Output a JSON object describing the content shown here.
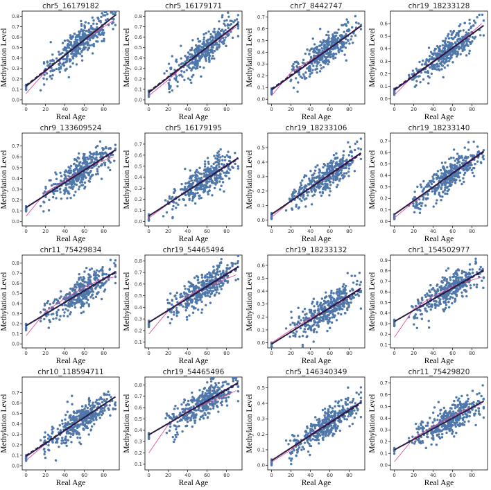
{
  "chart_data": [
    {
      "type": "scatter",
      "title": "chr5_16179182",
      "xlabel": "Real Age",
      "ylabel": "Methylation Level",
      "xlim": [
        -4,
        96
      ],
      "ylim": [
        -0.04,
        0.85
      ],
      "xticks": [
        0,
        20,
        40,
        60,
        80
      ],
      "yticks": [
        0.0,
        0.1,
        0.2,
        0.3,
        0.4,
        0.5,
        0.6,
        0.7,
        0.8
      ],
      "fit": [
        0.13,
        0.0074
      ],
      "trend": [
        0.14,
        0.0073
      ],
      "lowess": [
        [
          0,
          0.06
        ],
        [
          20,
          0.27
        ],
        [
          40,
          0.43
        ],
        [
          60,
          0.57
        ],
        [
          75,
          0.67
        ],
        [
          90,
          0.76
        ]
      ],
      "n": 380
    },
    {
      "type": "scatter",
      "title": "chr5_16179171",
      "xlabel": "Real Age",
      "ylabel": "Methylation Level",
      "xlim": [
        -4,
        96
      ],
      "ylim": [
        -0.04,
        0.85
      ],
      "xticks": [
        0,
        20,
        40,
        60,
        80
      ],
      "yticks": [
        0.0,
        0.1,
        0.2,
        0.3,
        0.4,
        0.5,
        0.6,
        0.7,
        0.8
      ],
      "fit": [
        0.07,
        0.0072
      ],
      "trend": [
        0.08,
        0.0071
      ],
      "lowess": [
        [
          0,
          0.04
        ],
        [
          20,
          0.19
        ],
        [
          40,
          0.36
        ],
        [
          60,
          0.5
        ],
        [
          75,
          0.6
        ],
        [
          90,
          0.7
        ]
      ],
      "n": 380
    },
    {
      "type": "scatter",
      "title": "chr7_8442747",
      "xlabel": "Real Age",
      "ylabel": "Methylation Level",
      "xlim": [
        -4,
        96
      ],
      "ylim": [
        -0.04,
        0.75
      ],
      "xticks": [
        0,
        20,
        40,
        60,
        80
      ],
      "yticks": [
        0.0,
        0.1,
        0.2,
        0.3,
        0.4,
        0.5,
        0.6,
        0.7
      ],
      "fit": [
        0.08,
        0.0059
      ],
      "trend": [
        0.09,
        0.0058
      ],
      "lowess": [
        [
          0,
          0.03
        ],
        [
          20,
          0.23
        ],
        [
          40,
          0.33
        ],
        [
          60,
          0.44
        ],
        [
          75,
          0.52
        ],
        [
          90,
          0.62
        ]
      ],
      "n": 380
    },
    {
      "type": "scatter",
      "title": "chr19_18233128",
      "xlabel": "Real Age",
      "ylabel": "Methylation Level",
      "xlim": [
        -4,
        96
      ],
      "ylim": [
        -0.04,
        0.7
      ],
      "xticks": [
        0,
        20,
        40,
        60,
        80
      ],
      "yticks": [
        0.0,
        0.1,
        0.2,
        0.3,
        0.4,
        0.5,
        0.6
      ],
      "fit": [
        0.07,
        0.0056
      ],
      "trend": [
        0.08,
        0.0055
      ],
      "lowess": [
        [
          0,
          0.03
        ],
        [
          20,
          0.19
        ],
        [
          40,
          0.3
        ],
        [
          60,
          0.41
        ],
        [
          75,
          0.5
        ],
        [
          90,
          0.6
        ]
      ],
      "n": 380
    },
    {
      "type": "scatter",
      "title": "chr9_133609524",
      "xlabel": "Real Age",
      "ylabel": "Methylation Level",
      "xlim": [
        -4,
        96
      ],
      "ylim": [
        -0.04,
        0.82
      ],
      "xticks": [
        0,
        20,
        40,
        60,
        80
      ],
      "yticks": [
        0.0,
        0.1,
        0.2,
        0.3,
        0.4,
        0.5,
        0.6,
        0.7
      ],
      "fit": [
        0.13,
        0.0058
      ],
      "trend": [
        0.13,
        0.0057
      ],
      "lowess": [
        [
          0,
          0.05
        ],
        [
          20,
          0.27
        ],
        [
          40,
          0.38
        ],
        [
          60,
          0.48
        ],
        [
          75,
          0.55
        ],
        [
          90,
          0.6
        ]
      ],
      "n": 380
    },
    {
      "type": "scatter",
      "title": "chr5_16179195",
      "xlabel": "Real Age",
      "ylabel": "Methylation Level",
      "xlim": [
        -4,
        96
      ],
      "ylim": [
        -0.04,
        0.8
      ],
      "xticks": [
        0,
        20,
        40,
        60,
        80
      ],
      "yticks": [
        0.0,
        0.1,
        0.2,
        0.3,
        0.4,
        0.5,
        0.6,
        0.7
      ],
      "fit": [
        0.05,
        0.0057
      ],
      "trend": [
        0.05,
        0.0056
      ],
      "lowess": [
        [
          0,
          0.03
        ],
        [
          20,
          0.16
        ],
        [
          40,
          0.28
        ],
        [
          60,
          0.39
        ],
        [
          75,
          0.47
        ],
        [
          90,
          0.56
        ]
      ],
      "n": 380
    },
    {
      "type": "scatter",
      "title": "chr19_18233106",
      "xlabel": "Real Age",
      "ylabel": "Methylation Level",
      "xlim": [
        -4,
        96
      ],
      "ylim": [
        -0.04,
        0.6
      ],
      "xticks": [
        0,
        20,
        40,
        60,
        80
      ],
      "yticks": [
        0.0,
        0.1,
        0.2,
        0.3,
        0.4,
        0.5
      ],
      "fit": [
        0.04,
        0.0046
      ],
      "trend": [
        0.04,
        0.0045
      ],
      "lowess": [
        [
          0,
          0.02
        ],
        [
          20,
          0.13
        ],
        [
          40,
          0.22
        ],
        [
          60,
          0.31
        ],
        [
          75,
          0.38
        ],
        [
          90,
          0.45
        ]
      ],
      "n": 380
    },
    {
      "type": "scatter",
      "title": "chr19_18233140",
      "xlabel": "Real Age",
      "ylabel": "Methylation Level",
      "xlim": [
        -4,
        96
      ],
      "ylim": [
        -0.04,
        0.77
      ],
      "xticks": [
        0,
        20,
        40,
        60,
        80
      ],
      "yticks": [
        0.0,
        0.1,
        0.2,
        0.3,
        0.4,
        0.5,
        0.6,
        0.7
      ],
      "fit": [
        0.06,
        0.006
      ],
      "trend": [
        0.06,
        0.0059
      ],
      "lowess": [
        [
          0,
          0.03
        ],
        [
          20,
          0.17
        ],
        [
          40,
          0.3
        ],
        [
          60,
          0.42
        ],
        [
          75,
          0.5
        ],
        [
          90,
          0.59
        ]
      ],
      "n": 380
    },
    {
      "type": "scatter",
      "title": "chr11_75429834",
      "xlabel": "Real Age",
      "ylabel": "Methylation Level",
      "xlim": [
        -4,
        96
      ],
      "ylim": [
        -0.04,
        0.88
      ],
      "xticks": [
        0,
        20,
        40,
        60,
        80
      ],
      "yticks": [
        0.0,
        0.1,
        0.2,
        0.3,
        0.4,
        0.5,
        0.6,
        0.7,
        0.8
      ],
      "fit": [
        0.18,
        0.0058
      ],
      "trend": [
        0.18,
        0.0057
      ],
      "lowess": [
        [
          0,
          0.08
        ],
        [
          20,
          0.32
        ],
        [
          40,
          0.45
        ],
        [
          60,
          0.56
        ],
        [
          75,
          0.63
        ],
        [
          90,
          0.66
        ]
      ],
      "n": 380
    },
    {
      "type": "scatter",
      "title": "chr19_54465494",
      "xlabel": "Real Age",
      "ylabel": "Methylation Level",
      "xlim": [
        -4,
        96
      ],
      "ylim": [
        0.05,
        0.85
      ],
      "xticks": [
        0,
        20,
        40,
        60,
        80
      ],
      "yticks": [
        0.1,
        0.2,
        0.3,
        0.4,
        0.5,
        0.6,
        0.7,
        0.8
      ],
      "fit": [
        0.27,
        0.0052
      ],
      "trend": [
        0.27,
        0.0051
      ],
      "lowess": [
        [
          0,
          0.17
        ],
        [
          20,
          0.37
        ],
        [
          40,
          0.5
        ],
        [
          60,
          0.58
        ],
        [
          75,
          0.63
        ],
        [
          90,
          0.68
        ]
      ],
      "n": 380
    },
    {
      "type": "scatter",
      "title": "chr19_18233132",
      "xlabel": "Real Age",
      "ylabel": "Methylation Level",
      "xlim": [
        -4,
        96
      ],
      "ylim": [
        -0.04,
        0.68
      ],
      "xticks": [
        0,
        20,
        40,
        60,
        80
      ],
      "yticks": [
        0.0,
        0.1,
        0.2,
        0.3,
        0.4,
        0.5,
        0.6
      ],
      "fit": [
        -0.01,
        0.0047
      ],
      "trend": [
        -0.01,
        0.0046
      ],
      "lowess": [
        [
          0,
          0.0
        ],
        [
          20,
          0.1
        ],
        [
          40,
          0.19
        ],
        [
          60,
          0.27
        ],
        [
          75,
          0.33
        ],
        [
          90,
          0.42
        ]
      ],
      "n": 380
    },
    {
      "type": "scatter",
      "title": "chr1_154502977",
      "xlabel": "Real Age",
      "ylabel": "Methylation Level",
      "xlim": [
        -4,
        96
      ],
      "ylim": [
        0.07,
        0.95
      ],
      "xticks": [
        0,
        20,
        40,
        60,
        80
      ],
      "yticks": [
        0.1,
        0.2,
        0.3,
        0.4,
        0.5,
        0.6,
        0.7,
        0.8,
        0.9
      ],
      "fit": [
        0.32,
        0.0053
      ],
      "trend": [
        0.32,
        0.0052
      ],
      "lowess": [
        [
          0,
          0.17
        ],
        [
          20,
          0.44
        ],
        [
          40,
          0.56
        ],
        [
          60,
          0.65
        ],
        [
          75,
          0.7
        ],
        [
          90,
          0.74
        ]
      ],
      "n": 380
    },
    {
      "type": "scatter",
      "title": "chr10_118594711",
      "xlabel": "Real Age",
      "ylabel": "Methylation Level",
      "xlim": [
        -4,
        96
      ],
      "ylim": [
        -0.04,
        0.85
      ],
      "xticks": [
        0,
        20,
        40,
        60,
        80
      ],
      "yticks": [
        0.0,
        0.1,
        0.2,
        0.3,
        0.4,
        0.5,
        0.6,
        0.7
      ],
      "fit": [
        0.09,
        0.0062
      ],
      "trend": [
        0.1,
        0.0061
      ],
      "lowess": [
        [
          0,
          0.05
        ],
        [
          20,
          0.21
        ],
        [
          40,
          0.34
        ],
        [
          60,
          0.46
        ],
        [
          75,
          0.55
        ],
        [
          90,
          0.65
        ]
      ],
      "n": 380
    },
    {
      "type": "scatter",
      "title": "chr19_54465496",
      "xlabel": "Real Age",
      "ylabel": "Methylation Level",
      "xlim": [
        -4,
        96
      ],
      "ylim": [
        0.05,
        0.87
      ],
      "xticks": [
        0,
        20,
        40,
        60,
        80
      ],
      "yticks": [
        0.1,
        0.2,
        0.3,
        0.4,
        0.5,
        0.6,
        0.7,
        0.8
      ],
      "fit": [
        0.36,
        0.005
      ],
      "trend": [
        0.36,
        0.0049
      ],
      "lowess": [
        [
          0,
          0.2
        ],
        [
          20,
          0.45
        ],
        [
          40,
          0.57
        ],
        [
          60,
          0.64
        ],
        [
          75,
          0.69
        ],
        [
          90,
          0.75
        ]
      ],
      "n": 380
    },
    {
      "type": "scatter",
      "title": "chr5_146340349",
      "xlabel": "Real Age",
      "ylabel": "Methylation Level",
      "xlim": [
        -4,
        96
      ],
      "ylim": [
        -0.03,
        0.57
      ],
      "xticks": [
        0,
        20,
        40,
        60,
        80
      ],
      "yticks": [
        0.0,
        0.1,
        0.2,
        0.3,
        0.4,
        0.5
      ],
      "fit": [
        0.03,
        0.0041
      ],
      "trend": [
        0.03,
        0.004
      ],
      "lowess": [
        [
          0,
          0.02
        ],
        [
          20,
          0.1
        ],
        [
          40,
          0.2
        ],
        [
          60,
          0.28
        ],
        [
          75,
          0.34
        ],
        [
          90,
          0.4
        ]
      ],
      "n": 380
    },
    {
      "type": "scatter",
      "title": "chr11_75429820",
      "xlabel": "Real Age",
      "ylabel": "Methylation Level",
      "xlim": [
        -4,
        96
      ],
      "ylim": [
        -0.04,
        0.75
      ],
      "xticks": [
        0,
        20,
        40,
        60,
        80
      ],
      "yticks": [
        0.0,
        0.1,
        0.2,
        0.3,
        0.4,
        0.5,
        0.6,
        0.7
      ],
      "fit": [
        0.13,
        0.0045
      ],
      "trend": [
        0.13,
        0.0045
      ],
      "lowess": [
        [
          0,
          0.03
        ],
        [
          20,
          0.23
        ],
        [
          40,
          0.33
        ],
        [
          60,
          0.42
        ],
        [
          75,
          0.48
        ],
        [
          90,
          0.52
        ]
      ],
      "n": 380
    }
  ]
}
